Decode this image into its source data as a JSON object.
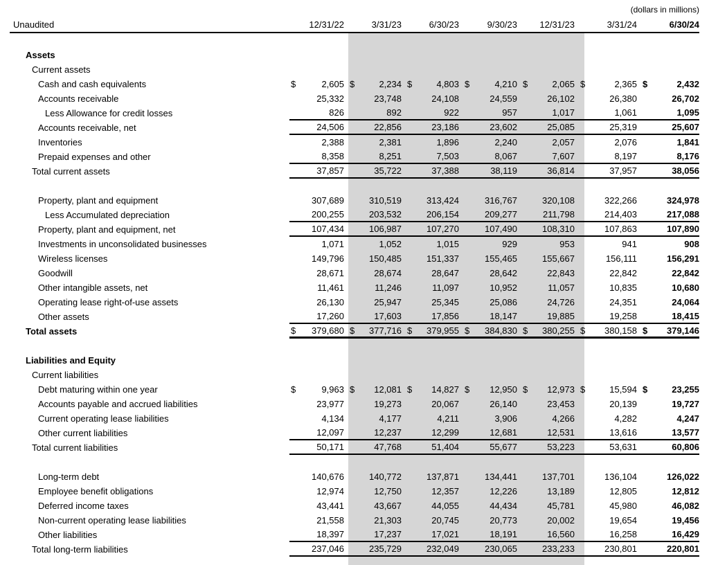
{
  "meta": {
    "units_note": "(dollars in millions)"
  },
  "table": {
    "left_header": "Unaudited",
    "columns": [
      "12/31/22",
      "3/31/23",
      "6/30/23",
      "9/30/23",
      "12/31/23",
      "3/31/24",
      "6/30/24"
    ],
    "highlighted_columns": [
      1,
      2,
      3,
      4
    ],
    "colors": {
      "highlight": "#d6d6d6",
      "text": "#000000",
      "rule": "#000000"
    },
    "rows": [
      {
        "type": "spacer",
        "label": ""
      },
      {
        "type": "section",
        "label": "Assets",
        "indent": 1,
        "bold": true
      },
      {
        "type": "subsection",
        "label": "Current assets",
        "indent": 2
      },
      {
        "type": "item",
        "label": "Cash and cash equivalents",
        "indent": 3,
        "dollar": true,
        "values": [
          "2,605",
          "2,234",
          "4,803",
          "4,210",
          "2,065",
          "2,365",
          "2,432"
        ]
      },
      {
        "type": "item",
        "label": "Accounts receivable",
        "indent": 3,
        "values": [
          "25,332",
          "23,748",
          "24,108",
          "24,559",
          "26,102",
          "26,380",
          "26,702"
        ]
      },
      {
        "type": "item",
        "label": "Less Allowance for credit losses",
        "indent": 4,
        "underline": "single",
        "values": [
          "826",
          "892",
          "922",
          "957",
          "1,017",
          "1,061",
          "1,095"
        ]
      },
      {
        "type": "item",
        "label": "Accounts receivable, net",
        "indent": 3,
        "underline": "single",
        "values": [
          "24,506",
          "22,856",
          "23,186",
          "23,602",
          "25,085",
          "25,319",
          "25,607"
        ]
      },
      {
        "type": "item",
        "label": "Inventories",
        "indent": 3,
        "values": [
          "2,388",
          "2,381",
          "1,896",
          "2,240",
          "2,057",
          "2,076",
          "1,841"
        ]
      },
      {
        "type": "item",
        "label": "Prepaid expenses and other",
        "indent": 3,
        "underline": "single",
        "values": [
          "8,358",
          "8,251",
          "7,503",
          "8,067",
          "7,607",
          "8,197",
          "8,176"
        ]
      },
      {
        "type": "total",
        "label": "Total current assets",
        "indent": 2,
        "underline": "single",
        "values": [
          "37,857",
          "35,722",
          "37,388",
          "38,119",
          "36,814",
          "37,957",
          "38,056"
        ]
      },
      {
        "type": "spacer",
        "label": ""
      },
      {
        "type": "item",
        "label": "Property, plant and equipment",
        "indent": 3,
        "values": [
          "307,689",
          "310,519",
          "313,424",
          "316,767",
          "320,108",
          "322,266",
          "324,978"
        ]
      },
      {
        "type": "item",
        "label": "Less Accumulated depreciation",
        "indent": 4,
        "underline": "single",
        "values": [
          "200,255",
          "203,532",
          "206,154",
          "209,277",
          "211,798",
          "214,403",
          "217,088"
        ]
      },
      {
        "type": "item",
        "label": "Property, plant and equipment, net",
        "indent": 3,
        "underline": "single",
        "values": [
          "107,434",
          "106,987",
          "107,270",
          "107,490",
          "108,310",
          "107,863",
          "107,890"
        ]
      },
      {
        "type": "item",
        "label": "Investments in unconsolidated businesses",
        "indent": 3,
        "values": [
          "1,071",
          "1,052",
          "1,015",
          "929",
          "953",
          "941",
          "908"
        ]
      },
      {
        "type": "item",
        "label": "Wireless licenses",
        "indent": 3,
        "values": [
          "149,796",
          "150,485",
          "151,337",
          "155,465",
          "155,667",
          "156,111",
          "156,291"
        ]
      },
      {
        "type": "item",
        "label": "Goodwill",
        "indent": 3,
        "values": [
          "28,671",
          "28,674",
          "28,647",
          "28,642",
          "22,843",
          "22,842",
          "22,842"
        ]
      },
      {
        "type": "item",
        "label": "Other intangible assets, net",
        "indent": 3,
        "values": [
          "11,461",
          "11,246",
          "11,097",
          "10,952",
          "11,057",
          "10,835",
          "10,680"
        ]
      },
      {
        "type": "item",
        "label": "Operating lease right-of-use assets",
        "indent": 3,
        "values": [
          "26,130",
          "25,947",
          "25,345",
          "25,086",
          "24,726",
          "24,351",
          "24,064"
        ]
      },
      {
        "type": "item",
        "label": "Other assets",
        "indent": 3,
        "underline": "single",
        "values": [
          "17,260",
          "17,603",
          "17,856",
          "18,147",
          "19,885",
          "19,258",
          "18,415"
        ]
      },
      {
        "type": "total",
        "label": "Total assets",
        "indent": 1,
        "bold": true,
        "dollar": true,
        "underline": "thick",
        "values": [
          "379,680",
          "377,716",
          "379,955",
          "384,830",
          "380,255",
          "380,158",
          "379,146"
        ]
      },
      {
        "type": "spacer",
        "label": ""
      },
      {
        "type": "section",
        "label": "Liabilities and Equity",
        "indent": 1,
        "bold": true
      },
      {
        "type": "subsection",
        "label": "Current liabilities",
        "indent": 2
      },
      {
        "type": "item",
        "label": "Debt maturing within one year",
        "indent": 3,
        "dollar": true,
        "values": [
          "9,963",
          "12,081",
          "14,827",
          "12,950",
          "12,973",
          "15,594",
          "23,255"
        ]
      },
      {
        "type": "item",
        "label": "Accounts payable and accrued liabilities",
        "indent": 3,
        "values": [
          "23,977",
          "19,273",
          "20,067",
          "26,140",
          "23,453",
          "20,139",
          "19,727"
        ]
      },
      {
        "type": "item",
        "label": "Current operating lease liabilities",
        "indent": 3,
        "values": [
          "4,134",
          "4,177",
          "4,211",
          "3,906",
          "4,266",
          "4,282",
          "4,247"
        ]
      },
      {
        "type": "item",
        "label": "Other current liabilities",
        "indent": 3,
        "underline": "single",
        "values": [
          "12,097",
          "12,237",
          "12,299",
          "12,681",
          "12,531",
          "13,616",
          "13,577"
        ]
      },
      {
        "type": "total",
        "label": "Total current liabilities",
        "indent": 2,
        "underline": "single",
        "values": [
          "50,171",
          "47,768",
          "51,404",
          "55,677",
          "53,223",
          "53,631",
          "60,806"
        ]
      },
      {
        "type": "spacer",
        "label": ""
      },
      {
        "type": "item",
        "label": "Long-term debt",
        "indent": 3,
        "values": [
          "140,676",
          "140,772",
          "137,871",
          "134,441",
          "137,701",
          "136,104",
          "126,022"
        ]
      },
      {
        "type": "item",
        "label": "Employee benefit obligations",
        "indent": 3,
        "values": [
          "12,974",
          "12,750",
          "12,357",
          "12,226",
          "13,189",
          "12,805",
          "12,812"
        ]
      },
      {
        "type": "item",
        "label": "Deferred income taxes",
        "indent": 3,
        "values": [
          "43,441",
          "43,667",
          "44,055",
          "44,434",
          "45,781",
          "45,980",
          "46,082"
        ]
      },
      {
        "type": "item",
        "label": "Non-current operating lease liabilities",
        "indent": 3,
        "values": [
          "21,558",
          "21,303",
          "20,745",
          "20,773",
          "20,002",
          "19,654",
          "19,456"
        ]
      },
      {
        "type": "item",
        "label": "Other liabilities",
        "indent": 3,
        "underline": "single",
        "values": [
          "18,397",
          "17,237",
          "17,021",
          "18,191",
          "16,560",
          "16,258",
          "16,429"
        ]
      },
      {
        "type": "total",
        "label": "Total long-term liabilities",
        "indent": 2,
        "underline": "single",
        "values": [
          "237,046",
          "235,729",
          "232,049",
          "230,065",
          "233,233",
          "230,801",
          "220,801"
        ]
      }
    ]
  }
}
